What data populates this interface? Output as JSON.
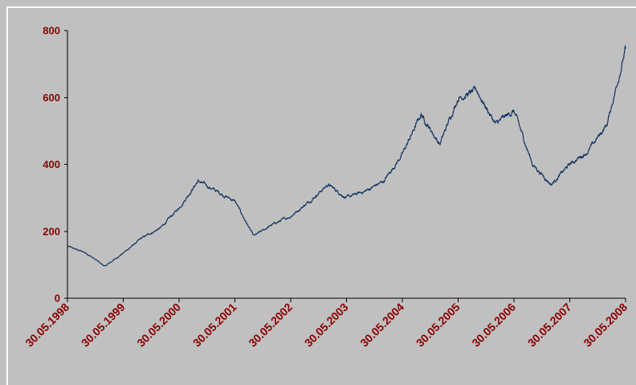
{
  "chart_data": {
    "type": "line",
    "title": "",
    "xlabel": "",
    "ylabel": "",
    "ylim": [
      0,
      800
    ],
    "y_ticks": [
      "0",
      "200",
      "400",
      "600",
      "800"
    ],
    "x_ticks": [
      "30.05.1998",
      "30.05.1999",
      "30.05.2000",
      "30.05.2001",
      "30.05.2002",
      "30.05.2003",
      "30.05.2004",
      "30.05.2005",
      "30.05.2006",
      "30.05.2007",
      "30.05.2008"
    ],
    "grid": false,
    "legend": "none",
    "colors": {
      "line": "#13335f",
      "labels": "#8b0000",
      "background": "#c0c0c0"
    },
    "series": [
      {
        "x": [
          "1998-05-30",
          "1998-09-30",
          "1999-01-30",
          "1999-05-30",
          "1999-09-30",
          "2000-01-30",
          "2000-05-30",
          "2000-09-30",
          "2001-01-30",
          "2001-05-30",
          "2001-09-30",
          "2002-01-30",
          "2002-05-30",
          "2002-09-30",
          "2003-01-30",
          "2003-05-30",
          "2003-09-30",
          "2004-01-30",
          "2004-05-30",
          "2004-09-30",
          "2005-01-30",
          "2005-05-30",
          "2005-09-30",
          "2006-01-30",
          "2006-05-30",
          "2006-09-30",
          "2007-01-30",
          "2007-05-30",
          "2007-09-30",
          "2008-01-30",
          "2008-05-30"
        ],
        "values": [
          155,
          135,
          95,
          135,
          180,
          210,
          270,
          350,
          320,
          290,
          185,
          220,
          245,
          290,
          340,
          300,
          320,
          350,
          430,
          550,
          460,
          600,
          620,
          520,
          560,
          400,
          340,
          400,
          440,
          520,
          745
        ]
      }
    ]
  }
}
